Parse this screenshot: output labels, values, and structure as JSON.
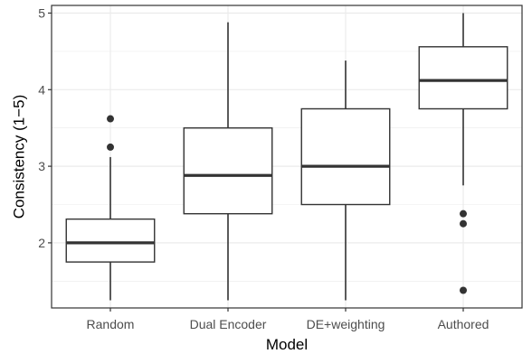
{
  "chart_data": {
    "type": "boxplot",
    "title": "",
    "xlabel": "Model",
    "ylabel": "Consistency (1−5)",
    "categories": [
      "Random",
      "Dual Encoder",
      "DE+weighting",
      "Authored"
    ],
    "yticks": [
      2,
      3,
      4,
      5
    ],
    "ylim": [
      1.15,
      5.1
    ],
    "grid": true,
    "legend": "none",
    "boxes": [
      {
        "category": "Random",
        "whisker_low": 1.25,
        "q1": 1.75,
        "median": 2.0,
        "q3": 2.31,
        "whisker_high": 3.12,
        "outliers": [
          3.25,
          3.62
        ]
      },
      {
        "category": "Dual Encoder",
        "whisker_low": 1.25,
        "q1": 2.38,
        "median": 2.88,
        "q3": 3.5,
        "whisker_high": 4.88,
        "outliers": []
      },
      {
        "category": "DE+weighting",
        "whisker_low": 1.25,
        "q1": 2.5,
        "median": 3.0,
        "q3": 3.75,
        "whisker_high": 4.38,
        "outliers": []
      },
      {
        "category": "Authored",
        "whisker_low": 2.75,
        "q1": 3.75,
        "median": 4.12,
        "q3": 4.56,
        "whisker_high": 5.0,
        "outliers": [
          1.38,
          2.25,
          2.38
        ]
      }
    ],
    "colors": {
      "panel_border": "#333333",
      "grid": "#ebebeb",
      "box_stroke": "#333333",
      "box_fill": "#ffffff",
      "tick_text": "#4d4d4d"
    }
  }
}
